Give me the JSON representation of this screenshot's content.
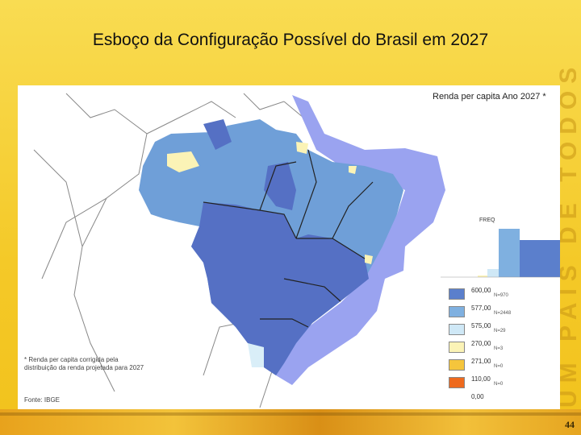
{
  "slide": {
    "title": "Esboço da Configuração Possível do Brasil em 2027",
    "side_watermark": "UM PAÍS DE TODOS",
    "page_number": "44"
  },
  "map": {
    "legend_title": "Renda per capita Ano 2027 *",
    "bar_chart_label": "FREQ",
    "note": "* Renda per capita corrigida pela distribuição da renda projetada para 2027",
    "source": "Fonte: IBGE",
    "legend": [
      {
        "value": "600,00",
        "count": "N=970",
        "color": "#5b7fcc"
      },
      {
        "value": "577,00",
        "count": "N=2448",
        "color": "#7fb0e0"
      },
      {
        "value": "575,00",
        "count": "N=29",
        "color": "#cfe8f6"
      },
      {
        "value": "270,00",
        "count": "N=3",
        "color": "#fbf3b6"
      },
      {
        "value": "271,00",
        "count": "N=0",
        "color": "#f5c53c"
      },
      {
        "value": "110,00",
        "count": "N=0",
        "color": "#ee6a1e"
      }
    ],
    "legend_bottom": "0,00",
    "bar_values": [
      2,
      10,
      60,
      46
    ],
    "colors": {
      "ocean_zone": "#9aa3f0",
      "high": "#5570c4",
      "mid": "#7fb0e0",
      "low": "#d9eef8",
      "pale": "#fbf3b6"
    }
  }
}
